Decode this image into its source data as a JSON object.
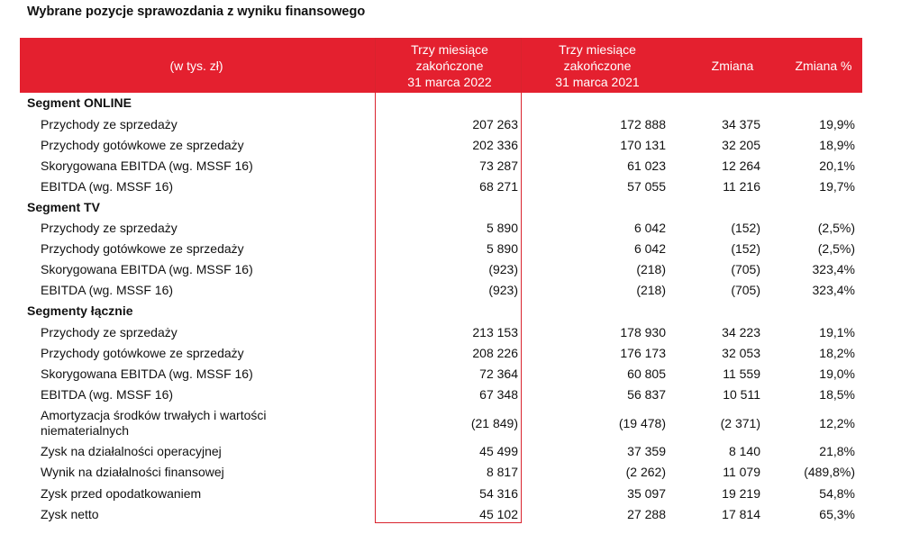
{
  "title": "Wybrane pozycje sprawozdania z wyniku finansowego",
  "header": {
    "units": "(w tys. zł)",
    "col1": "Trzy miesiące\nzakończone\n31 marca 2022",
    "col2": "Trzy miesiące\nzakończone\n31 marca 2021",
    "col3": "Zmiana",
    "col4": "Zmiana %"
  },
  "colors": {
    "header_bg": "#e4202f",
    "highlight_border": "#d9232e"
  },
  "rows": [
    {
      "type": "segment",
      "label": "Segment ONLINE"
    },
    {
      "type": "item",
      "label": "Przychody ze sprzedaży",
      "v1": "207 263",
      "v2": "172 888",
      "v3": "34 375",
      "v4": "19,9%"
    },
    {
      "type": "item",
      "label": "Przychody gotówkowe ze sprzedaży",
      "v1": "202 336",
      "v2": "170 131",
      "v3": "32 205",
      "v4": "18,9%"
    },
    {
      "type": "item",
      "label": "Skorygowana EBITDA (wg. MSSF 16)",
      "v1": "73 287",
      "v2": "61 023",
      "v3": "12 264",
      "v4": "20,1%"
    },
    {
      "type": "item",
      "label": "EBITDA (wg. MSSF 16)",
      "v1": "68 271",
      "v2": "57 055",
      "v3": "11 216",
      "v4": "19,7%"
    },
    {
      "type": "segment",
      "label": "Segment TV"
    },
    {
      "type": "item",
      "label": "Przychody ze sprzedaży",
      "v1": "5 890",
      "v2": "6 042",
      "v3": "(152)",
      "v4": "(2,5%)"
    },
    {
      "type": "item",
      "label": "Przychody gotówkowe ze sprzedaży",
      "v1": "5 890",
      "v2": "6 042",
      "v3": "(152)",
      "v4": "(2,5%)"
    },
    {
      "type": "item",
      "label": "Skorygowana EBITDA (wg. MSSF 16)",
      "v1": "(923)",
      "v2": "(218)",
      "v3": "(705)",
      "v4": "323,4%"
    },
    {
      "type": "item",
      "label": "EBITDA (wg. MSSF 16)",
      "v1": "(923)",
      "v2": "(218)",
      "v3": "(705)",
      "v4": "323,4%"
    },
    {
      "type": "segment",
      "label": "Segmenty łącznie"
    },
    {
      "type": "item",
      "label": "Przychody ze sprzedaży",
      "v1": "213 153",
      "v2": "178 930",
      "v3": "34 223",
      "v4": "19,1%"
    },
    {
      "type": "item",
      "label": "Przychody gotówkowe ze sprzedaży",
      "v1": "208 226",
      "v2": "176 173",
      "v3": "32 053",
      "v4": "18,2%"
    },
    {
      "type": "item",
      "label": "Skorygowana EBITDA (wg. MSSF 16)",
      "v1": "72 364",
      "v2": "60 805",
      "v3": "11 559",
      "v4": "19,0%"
    },
    {
      "type": "item",
      "label": "EBITDA (wg. MSSF 16)",
      "v1": "67 348",
      "v2": "56 837",
      "v3": "10 511",
      "v4": "18,5%"
    },
    {
      "type": "item",
      "label": "Amortyzacja środków trwałych i wartości\nniematerialnych",
      "v1": "(21 849)",
      "v2": "(19 478)",
      "v3": "(2 371)",
      "v4": "12,2%"
    },
    {
      "type": "item",
      "label": "Zysk na działalności operacyjnej",
      "v1": "45 499",
      "v2": "37 359",
      "v3": "8 140",
      "v4": "21,8%"
    },
    {
      "type": "item",
      "label": "Wynik na działalności finansowej",
      "v1": "8 817",
      "v2": "(2 262)",
      "v3": "11 079",
      "v4": "(489,8%)"
    },
    {
      "type": "item",
      "label": "Zysk przed opodatkowaniem",
      "v1": "54 316",
      "v2": "35 097",
      "v3": "19 219",
      "v4": "54,8%"
    },
    {
      "type": "item",
      "label": "Zysk netto",
      "v1": "45 102",
      "v2": "27 288",
      "v3": "17 814",
      "v4": "65,3%"
    }
  ]
}
